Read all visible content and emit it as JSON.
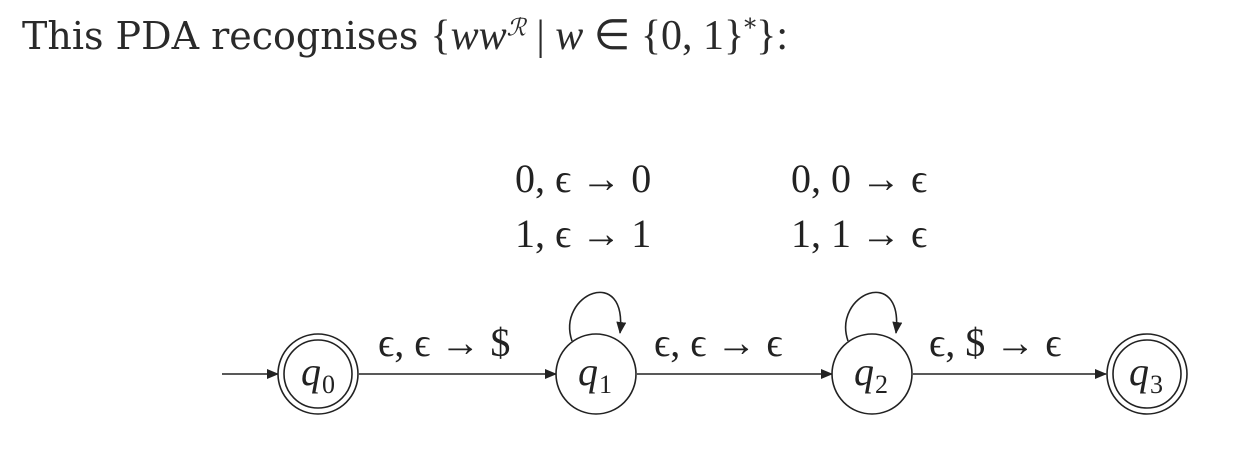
{
  "heading": {
    "prefix": "This PDA recognises ",
    "lbrace": "{",
    "w1": "w",
    "w2": "w",
    "reverse_sup": "ℛ",
    "bar": " | ",
    "w3": "w",
    "member": " ∈ {0, 1}",
    "star": "*",
    "suffix": "}:"
  },
  "diagram": {
    "states": [
      {
        "id": "q0",
        "name": "q",
        "sub": "0",
        "accepting": true,
        "start": true
      },
      {
        "id": "q1",
        "name": "q",
        "sub": "1",
        "accepting": false
      },
      {
        "id": "q2",
        "name": "q",
        "sub": "2",
        "accepting": false
      },
      {
        "id": "q3",
        "name": "q",
        "sub": "3",
        "accepting": true
      }
    ],
    "transitions": {
      "q0_q1": "ϵ, ϵ → $",
      "q1_q2": "ϵ, ϵ → ϵ",
      "q2_q3": "ϵ, $ → ϵ"
    },
    "loops": {
      "q1": [
        "0, ϵ → 0",
        "1, ϵ → 1"
      ],
      "q2": [
        "0, 0 → ϵ",
        "1, 1 → ϵ"
      ]
    }
  },
  "colors": {
    "ink": "#222222",
    "background": "#ffffff"
  }
}
